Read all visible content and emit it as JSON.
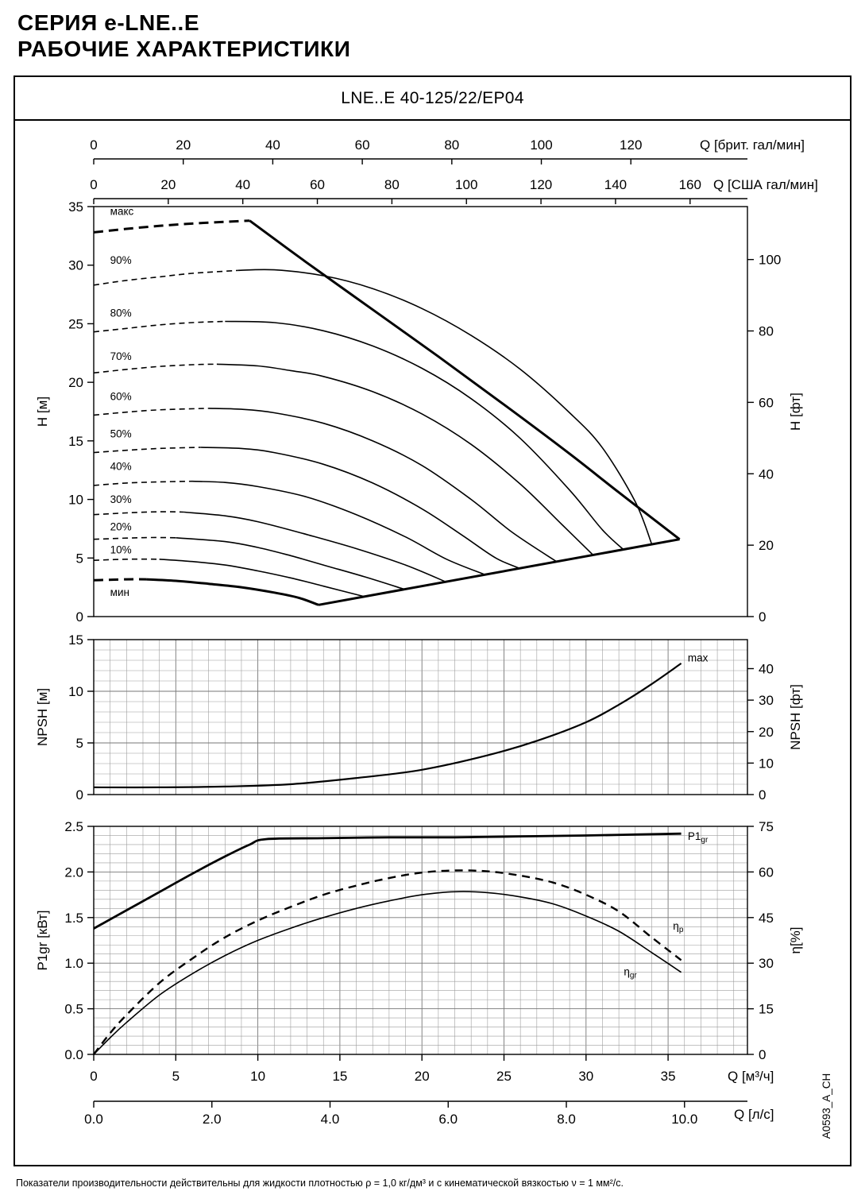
{
  "page": {
    "heading_line1": "СЕРИЯ e-LNE..E",
    "heading_line2": "РАБОЧИЕ ХАРАКТЕРИСТИКИ",
    "chart_title": "LNE..E 40-125/22/EP04",
    "footnote": "Показатели производительности действительны для жидкости плотностью ρ = 1,0 кг/дм³  и с кинематической вязкостью ν = 1 мм²/с.",
    "doc_code": "A0593_A_CH"
  },
  "x_axes": {
    "top1": {
      "label": "Q [брит. гал/мин]",
      "ticks": [
        0,
        20,
        40,
        60,
        80,
        100,
        120
      ],
      "to_m3h": 0.27276
    },
    "top2": {
      "label": "Q [США гал/мин]",
      "ticks": [
        0,
        20,
        40,
        60,
        80,
        100,
        120,
        140,
        160
      ],
      "to_m3h": 0.22712
    },
    "bottom1": {
      "label": "Q [м³/ч]",
      "ticks": [
        0,
        5,
        10,
        15,
        20,
        25,
        30,
        35
      ],
      "to_m3h": 1
    },
    "bottom2": {
      "label": "Q [л/с]",
      "ticks": [
        "0.0",
        "2.0",
        "4.0",
        "6.0",
        "8.0",
        "10.0"
      ],
      "to_m3h": 3.6
    },
    "xlim_m3h": [
      0,
      39.8
    ]
  },
  "chart_data": [
    {
      "id": "head-flow",
      "type": "line",
      "ylabel_left": "H [м]",
      "ylabel_right": "H [фт]",
      "ylim_left": [
        0,
        35
      ],
      "yticks_left": [
        0,
        5,
        10,
        15,
        20,
        25,
        30,
        35
      ],
      "yticks_right": [
        0,
        20,
        40,
        60,
        80,
        100
      ],
      "right_unit_to_left": 0.3048,
      "grid": false,
      "curves": [
        {
          "id": "max-speed",
          "label": "макс",
          "thick": true,
          "dash_until": 9.5,
          "label_pos": [
            1.0,
            34.3
          ],
          "points": [
            [
              0,
              32.8
            ],
            [
              2,
              33.1
            ],
            [
              4,
              33.35
            ],
            [
              6,
              33.55
            ],
            [
              8,
              33.7
            ],
            [
              9.5,
              33.8
            ],
            [
              13,
              30.2
            ],
            [
              17,
              26.2
            ],
            [
              21,
              22.2
            ],
            [
              25,
              18.1
            ],
            [
              29,
              13.9
            ],
            [
              32,
              10.6
            ],
            [
              35.7,
              6.6
            ]
          ]
        },
        {
          "id": "speed-90",
          "label": "90%",
          "dash_until": 8.8,
          "label_pos": [
            1.0,
            30.1
          ],
          "points": [
            [
              0,
              28.3
            ],
            [
              2,
              28.7
            ],
            [
              4,
              29.0
            ],
            [
              6,
              29.3
            ],
            [
              8.8,
              29.55
            ],
            [
              11,
              29.6
            ],
            [
              14,
              29.1
            ],
            [
              17,
              28.0
            ],
            [
              20,
              26.3
            ],
            [
              23,
              24.0
            ],
            [
              26,
              21.1
            ],
            [
              29,
              17.4
            ],
            [
              31,
              14.4
            ],
            [
              33,
              9.8
            ],
            [
              34,
              6.2
            ]
          ]
        },
        {
          "id": "speed-80",
          "label": "80%",
          "dash_until": 8.0,
          "label_pos": [
            1.0,
            25.6
          ],
          "points": [
            [
              0,
              24.3
            ],
            [
              2,
              24.6
            ],
            [
              4,
              24.9
            ],
            [
              6,
              25.1
            ],
            [
              8,
              25.2
            ],
            [
              11,
              25.1
            ],
            [
              14,
              24.4
            ],
            [
              17,
              23.1
            ],
            [
              20,
              21.2
            ],
            [
              23,
              18.6
            ],
            [
              26,
              15.2
            ],
            [
              29,
              10.8
            ],
            [
              31,
              7.4
            ],
            [
              32.3,
              5.7
            ]
          ]
        },
        {
          "id": "speed-70",
          "label": "70%",
          "dash_until": 7.5,
          "label_pos": [
            1.0,
            21.9
          ],
          "points": [
            [
              0,
              20.8
            ],
            [
              2,
              21.1
            ],
            [
              4,
              21.35
            ],
            [
              6,
              21.5
            ],
            [
              7.5,
              21.55
            ],
            [
              10,
              21.4
            ],
            [
              12,
              21.0
            ],
            [
              14,
              20.5
            ],
            [
              17,
              19.2
            ],
            [
              20,
              17.3
            ],
            [
              23,
              14.7
            ],
            [
              26,
              11.3
            ],
            [
              28.5,
              7.9
            ],
            [
              30.4,
              5.3
            ]
          ]
        },
        {
          "id": "speed-60",
          "label": "60%",
          "dash_until": 7.0,
          "label_pos": [
            1.0,
            18.5
          ],
          "points": [
            [
              0,
              17.2
            ],
            [
              2,
              17.45
            ],
            [
              4,
              17.65
            ],
            [
              7,
              17.78
            ],
            [
              9,
              17.7
            ],
            [
              11,
              17.4
            ],
            [
              14,
              16.5
            ],
            [
              17,
              15.0
            ],
            [
              20,
              12.9
            ],
            [
              23,
              10.0
            ],
            [
              25.5,
              7.2
            ],
            [
              28.2,
              4.7
            ]
          ]
        },
        {
          "id": "speed-50",
          "label": "50%",
          "dash_until": 6.5,
          "label_pos": [
            1.0,
            15.3
          ],
          "points": [
            [
              0,
              14.0
            ],
            [
              2,
              14.2
            ],
            [
              4,
              14.35
            ],
            [
              6.5,
              14.45
            ],
            [
              9,
              14.35
            ],
            [
              11,
              14.0
            ],
            [
              14,
              13.0
            ],
            [
              17,
              11.4
            ],
            [
              20,
              9.2
            ],
            [
              22.5,
              6.9
            ],
            [
              24.5,
              5.0
            ],
            [
              26,
              4.1
            ]
          ]
        },
        {
          "id": "speed-40",
          "label": "40%",
          "dash_until": 6.0,
          "label_pos": [
            1.0,
            12.5
          ],
          "points": [
            [
              0,
              11.2
            ],
            [
              2,
              11.4
            ],
            [
              4,
              11.5
            ],
            [
              6,
              11.55
            ],
            [
              8,
              11.45
            ],
            [
              10,
              11.1
            ],
            [
              13,
              10.2
            ],
            [
              16,
              8.7
            ],
            [
              19,
              6.8
            ],
            [
              21.5,
              4.9
            ],
            [
              23.8,
              3.6
            ]
          ]
        },
        {
          "id": "speed-30",
          "label": "30%",
          "dash_until": 5.5,
          "label_pos": [
            1.0,
            9.7
          ],
          "points": [
            [
              0,
              8.7
            ],
            [
              2,
              8.85
            ],
            [
              4,
              8.95
            ],
            [
              5.5,
              8.92
            ],
            [
              8,
              8.6
            ],
            [
              10,
              8.1
            ],
            [
              13,
              7.0
            ],
            [
              16,
              5.8
            ],
            [
              19,
              4.4
            ],
            [
              21.4,
              3.0
            ]
          ]
        },
        {
          "id": "speed-20",
          "label": "20%",
          "dash_until": 5.0,
          "label_pos": [
            1.0,
            7.35
          ],
          "points": [
            [
              0,
              6.6
            ],
            [
              2,
              6.7
            ],
            [
              3.5,
              6.75
            ],
            [
              5,
              6.73
            ],
            [
              8,
              6.4
            ],
            [
              10,
              5.9
            ],
            [
              12,
              5.2
            ],
            [
              14,
              4.4
            ],
            [
              16.5,
              3.4
            ],
            [
              19,
              2.3
            ]
          ]
        },
        {
          "id": "speed-10",
          "label": "10%",
          "dash_until": 4.0,
          "label_pos": [
            1.0,
            5.4
          ],
          "points": [
            [
              0,
              4.8
            ],
            [
              2,
              4.9
            ],
            [
              4,
              4.9
            ],
            [
              6,
              4.7
            ],
            [
              8,
              4.4
            ],
            [
              10,
              3.9
            ],
            [
              12,
              3.3
            ],
            [
              14,
              2.6
            ],
            [
              16.5,
              1.7
            ]
          ]
        },
        {
          "id": "min-speed",
          "label": "мин",
          "thick": true,
          "dash_until": 3.2,
          "label_pos": [
            1.0,
            1.75
          ],
          "points": [
            [
              0,
              3.1
            ],
            [
              2,
              3.18
            ],
            [
              3.2,
              3.18
            ],
            [
              5,
              3.05
            ],
            [
              7,
              2.8
            ],
            [
              9,
              2.5
            ],
            [
              11,
              2.05
            ],
            [
              12.5,
              1.6
            ],
            [
              13.7,
              1.0
            ]
          ]
        }
      ],
      "end_of_curve_locus": [
        [
          13.7,
          1.0
        ],
        [
          35.7,
          6.6
        ]
      ]
    },
    {
      "id": "npsh",
      "type": "line",
      "ylabel_left": "NPSH [м]",
      "ylabel_right": "NPSH [фт]",
      "ylim_left": [
        0,
        15
      ],
      "yticks_left": [
        0,
        5,
        10,
        15
      ],
      "yticks_right": [
        0,
        10,
        20,
        30,
        40
      ],
      "right_unit_to_left": 0.3048,
      "grid": true,
      "curves": [
        {
          "id": "npsh-max",
          "label": "max",
          "width": "medium",
          "label_pos": [
            36.2,
            12.9
          ],
          "points": [
            [
              0,
              0.7
            ],
            [
              4,
              0.7
            ],
            [
              8,
              0.78
            ],
            [
              12,
              1.0
            ],
            [
              16,
              1.6
            ],
            [
              20,
              2.4
            ],
            [
              24,
              3.8
            ],
            [
              27,
              5.2
            ],
            [
              30,
              7.0
            ],
            [
              32,
              8.7
            ],
            [
              34,
              10.7
            ],
            [
              35.8,
              12.7
            ]
          ]
        }
      ]
    },
    {
      "id": "power-efficiency",
      "type": "line",
      "ylabel_left": "P1gr [кВт]",
      "ylabel_right": "η[%]",
      "ylim_left": [
        0,
        2.5
      ],
      "yticks_left": [
        "0.0",
        "0.5",
        "1.0",
        "1.5",
        "2.0",
        "2.5"
      ],
      "ylim_right": [
        0,
        75
      ],
      "yticks_right": [
        0,
        15,
        30,
        45,
        60,
        75
      ],
      "grid": true,
      "curves": [
        {
          "id": "p1gr",
          "label": "P1",
          "label_sub": "gr",
          "axis": "left",
          "thick": true,
          "label_pos": [
            36.2,
            2.35
          ],
          "points": [
            [
              0,
              1.38
            ],
            [
              2,
              1.58
            ],
            [
              4,
              1.78
            ],
            [
              6,
              1.98
            ],
            [
              8,
              2.17
            ],
            [
              9.5,
              2.3
            ],
            [
              10.5,
              2.36
            ],
            [
              14,
              2.37
            ],
            [
              18,
              2.38
            ],
            [
              22,
              2.38
            ],
            [
              26,
              2.39
            ],
            [
              30,
              2.4
            ],
            [
              33,
              2.41
            ],
            [
              35.8,
              2.42
            ]
          ]
        },
        {
          "id": "eta-p",
          "label": "η",
          "label_sub": "p",
          "axis": "right",
          "dashed": true,
          "label_pos": [
            35.3,
            41
          ],
          "points": [
            [
              0,
              0
            ],
            [
              1,
              7
            ],
            [
              2,
              13
            ],
            [
              4,
              23.5
            ],
            [
              6,
              31.5
            ],
            [
              8,
              38.5
            ],
            [
              10,
              44
            ],
            [
              12,
              48.5
            ],
            [
              14,
              52.5
            ],
            [
              16,
              55.5
            ],
            [
              18,
              58
            ],
            [
              20,
              59.8
            ],
            [
              22,
              60.5
            ],
            [
              24,
              60.2
            ],
            [
              26,
              58.8
            ],
            [
              28,
              56.5
            ],
            [
              30,
              52.5
            ],
            [
              32,
              47
            ],
            [
              34,
              38.5
            ],
            [
              35.8,
              31
            ]
          ]
        },
        {
          "id": "eta-gr",
          "label": "η",
          "label_sub": "gr",
          "axis": "right",
          "label_pos": [
            32.3,
            26
          ],
          "points": [
            [
              0,
              0
            ],
            [
              1,
              5.5
            ],
            [
              2,
              10.5
            ],
            [
              4,
              19.5
            ],
            [
              6,
              26.5
            ],
            [
              8,
              32.5
            ],
            [
              10,
              37.5
            ],
            [
              12,
              41.5
            ],
            [
              14,
              45
            ],
            [
              16,
              48
            ],
            [
              18,
              50.5
            ],
            [
              20,
              52.5
            ],
            [
              22,
              53.5
            ],
            [
              24,
              53.2
            ],
            [
              26,
              51.8
            ],
            [
              28,
              49.5
            ],
            [
              30,
              45.5
            ],
            [
              32,
              40.5
            ],
            [
              34,
              33.5
            ],
            [
              35.8,
              27
            ]
          ]
        }
      ]
    }
  ]
}
